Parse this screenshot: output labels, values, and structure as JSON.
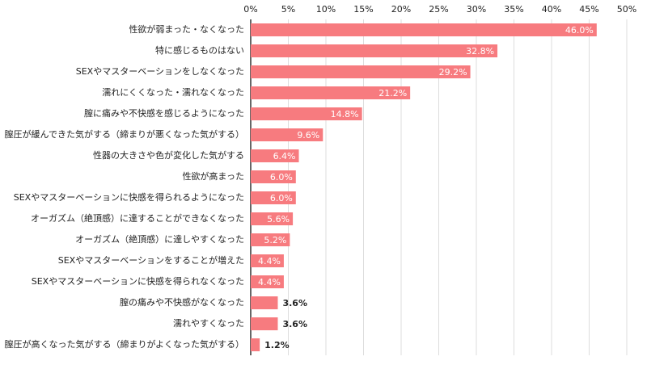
{
  "chart_data": {
    "type": "hbar",
    "categories": [
      "性欲が弱まった・なくなった",
      "特に感じるものはない",
      "SEXやマスターベーションをしなくなった",
      "濡れにくくなった・濡れなくなった",
      "膣に痛みや不快感を感じるようになった",
      "膣圧が緩んできた気がする（締まりが悪くなった気がする）",
      "性器の大きさや色が変化した気がする",
      "性欲が高まった",
      "SEXやマスターベーションに快感を得られるようになった",
      "オーガズム（絶頂感）に達することができなくなった",
      "オーガズム（絶頂感）に達しやすくなった",
      "SEXやマスターベーションをすることが増えた",
      "SEXやマスターベーションに快感を得られなくなった",
      "膣の痛みや不快感がなくなった",
      "濡れやすくなった",
      "膣圧が高くなった気がする（締まりがよくなった気がする）"
    ],
    "values": [
      46.0,
      32.8,
      29.2,
      21.2,
      14.8,
      9.6,
      6.4,
      6.0,
      6.0,
      5.6,
      5.2,
      4.4,
      4.4,
      3.6,
      3.6,
      1.2
    ],
    "value_labels": [
      "46.0%",
      "32.8%",
      "29.2%",
      "21.2%",
      "14.8%",
      "9.6%",
      "6.4%",
      "6.0%",
      "6.0%",
      "5.6%",
      "5.2%",
      "4.4%",
      "4.4%",
      "3.6%",
      "3.6%",
      "1.2%"
    ],
    "color": "#f77b7f",
    "xlim": [
      0,
      50
    ],
    "xticks": [
      {
        "value": 0,
        "label": "0%"
      },
      {
        "value": 5,
        "label": "5%"
      },
      {
        "value": 10,
        "label": "10%"
      },
      {
        "value": 15,
        "label": "15%"
      },
      {
        "value": 20,
        "label": "20%"
      },
      {
        "value": 25,
        "label": "25%"
      },
      {
        "value": 30,
        "label": "30%"
      },
      {
        "value": 35,
        "label": "35%"
      },
      {
        "value": 40,
        "label": "40%"
      },
      {
        "value": 45,
        "label": "45%"
      },
      {
        "value": 50,
        "label": "50%"
      }
    ],
    "grid": true
  }
}
